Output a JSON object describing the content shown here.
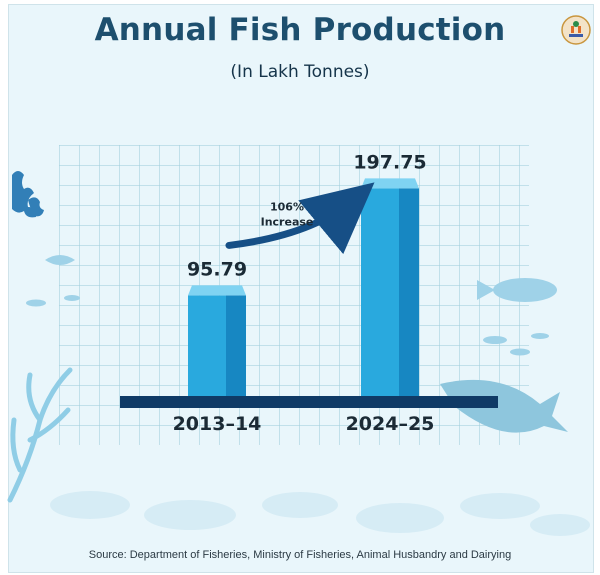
{
  "title": "Annual Fish Production",
  "subtitle": "(In Lakh Tonnes)",
  "source": "Source: Department of Fisheries, Ministry of Fisheries, Animal Husbandry and Dairying",
  "annotation": {
    "percent": "106%",
    "word": "Increase"
  },
  "colors": {
    "title": "#1d4f6e",
    "bar_front": "#29a9de",
    "bar_side": "#1787c2",
    "bar_top": "#7fd3f2",
    "axis": "#0f3a66",
    "arrow": "#164f86",
    "background": "#e9f6fb"
  },
  "icons": {
    "logo": "government-seal-logo"
  },
  "chart_data": {
    "type": "bar",
    "title": "Annual Fish Production",
    "subtitle": "(In Lakh Tonnes)",
    "categories": [
      "2013–14",
      "2024–25"
    ],
    "values": [
      95.79,
      197.75
    ],
    "value_labels": [
      "95.79",
      "197.75"
    ],
    "ylim": [
      0,
      200
    ],
    "grid": true,
    "legend": "none"
  }
}
